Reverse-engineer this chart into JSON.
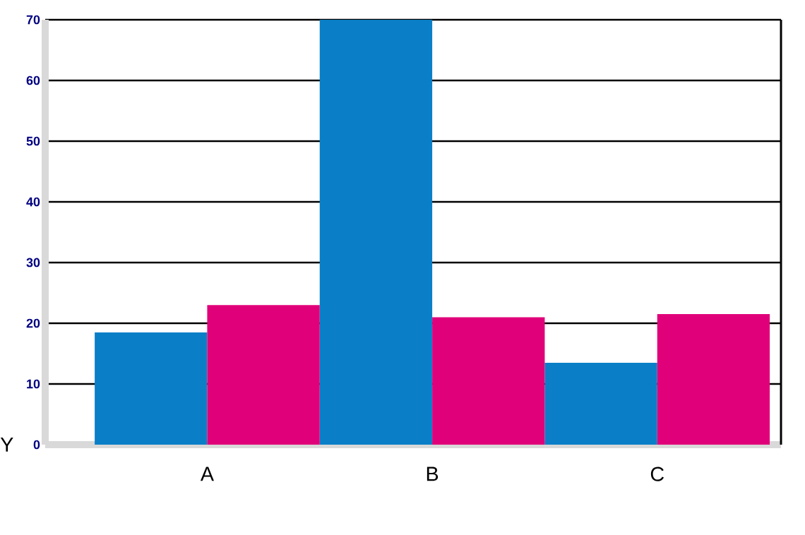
{
  "chart_data": {
    "type": "bar",
    "ylabel": "Y",
    "categories": [
      "A",
      "B",
      "C"
    ],
    "series": [
      {
        "color": "#0a7fc8",
        "values": [
          18.5,
          70,
          13.5
        ]
      },
      {
        "color": "#e0007a",
        "values": [
          23,
          21,
          21.5
        ]
      }
    ],
    "ylim": [
      0,
      70
    ],
    "yticks": [
      0,
      10,
      20,
      30,
      40,
      50,
      60,
      70
    ],
    "grid": "y"
  }
}
